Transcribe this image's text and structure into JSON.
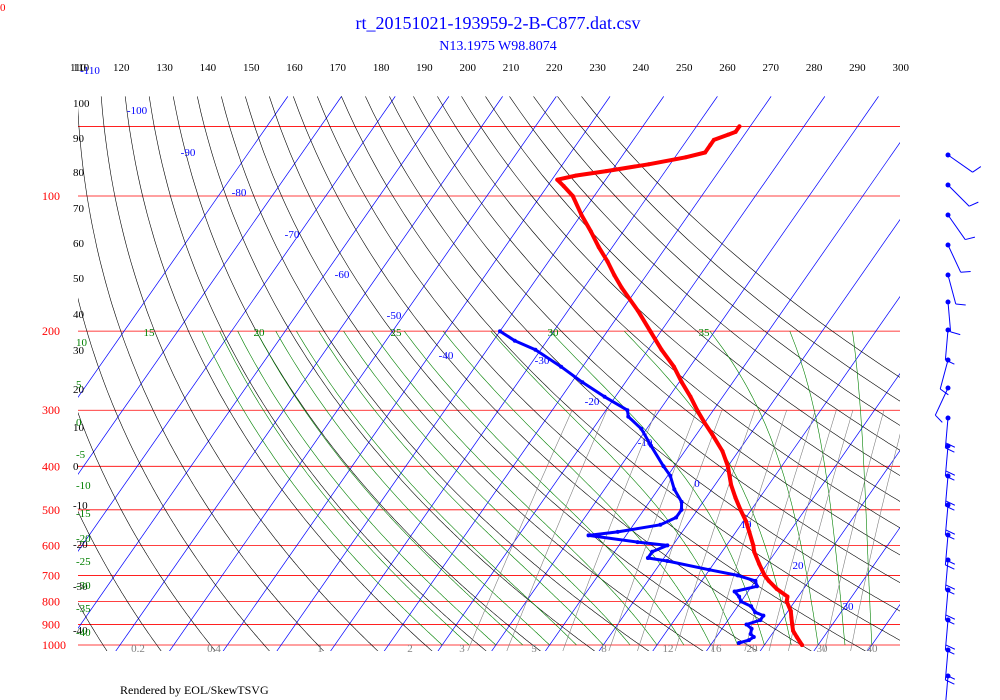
{
  "chart_data": {
    "type": "skewt",
    "title": "rt_20151021-193959-2-B-C877.dat.csv",
    "subtitle": "N13.1975 W98.8074",
    "footer": "Rendered by EOL/SkewTSVG",
    "corner_label": "0",
    "potential_temperature_ticks": [
      110,
      120,
      130,
      140,
      150,
      160,
      170,
      180,
      190,
      200,
      210,
      220,
      230,
      240,
      250,
      260,
      270,
      280,
      290,
      300
    ],
    "pressure_levels": [
      1000,
      900,
      800,
      700,
      600,
      500,
      400,
      300,
      200,
      100
    ],
    "altitude_labels": [
      "110",
      "100",
      "90",
      "80",
      "70",
      "60",
      "50",
      "40",
      "30",
      "20",
      "10",
      "0",
      "-10",
      "-20",
      "-30",
      "-40"
    ],
    "isotherm_labels": [
      "-110",
      "-100",
      "-90",
      "-80",
      "-70",
      "-60",
      "-50",
      "-40",
      "-30",
      "-20",
      "-10",
      "0",
      "10",
      "20",
      "30"
    ],
    "moist_adiabat_labels_top": [
      "15",
      "20",
      "25",
      "30",
      "35"
    ],
    "moist_adiabat_labels_left": [
      "10",
      "5",
      "0",
      "-5",
      "-10",
      "-15",
      "-20",
      "-25",
      "-30",
      "-35",
      "-40"
    ],
    "mixing_ratio_labels": [
      "0.2",
      "0.4",
      "1",
      "2",
      "3",
      "5",
      "8",
      "12",
      "16",
      "20",
      "30",
      "40"
    ],
    "temperature_profile": [
      [
        1000,
        27
      ],
      [
        960,
        25
      ],
      [
        930,
        23.5
      ],
      [
        900,
        22.5
      ],
      [
        870,
        21.5
      ],
      [
        840,
        20.5
      ],
      [
        800,
        18.5
      ],
      [
        780,
        18
      ],
      [
        750,
        15
      ],
      [
        720,
        12.5
      ],
      [
        700,
        11
      ],
      [
        660,
        8.5
      ],
      [
        620,
        6
      ],
      [
        600,
        5
      ],
      [
        560,
        2.5
      ],
      [
        530,
        0.5
      ],
      [
        500,
        -2
      ],
      [
        470,
        -4.5
      ],
      [
        440,
        -7
      ],
      [
        400,
        -10
      ],
      [
        370,
        -13
      ],
      [
        340,
        -17
      ],
      [
        320,
        -20
      ],
      [
        300,
        -23
      ],
      [
        280,
        -26
      ],
      [
        260,
        -29.5
      ],
      [
        240,
        -33
      ],
      [
        220,
        -37.5
      ],
      [
        200,
        -42
      ],
      [
        180,
        -47
      ],
      [
        160,
        -53
      ],
      [
        150,
        -56
      ],
      [
        140,
        -59
      ],
      [
        130,
        -62.5
      ],
      [
        120,
        -66
      ],
      [
        110,
        -70
      ],
      [
        100,
        -74
      ],
      [
        95,
        -77
      ],
      [
        92,
        -79
      ],
      [
        90,
        -76
      ],
      [
        88,
        -71
      ],
      [
        85,
        -64
      ],
      [
        82,
        -58
      ],
      [
        80,
        -55
      ],
      [
        77,
        -55
      ],
      [
        75,
        -55
      ],
      [
        73,
        -53
      ],
      [
        72,
        -52
      ],
      [
        70,
        -52
      ]
    ],
    "dewpoint_profile": [
      [
        990,
        15
      ],
      [
        975,
        16.5
      ],
      [
        960,
        17
      ],
      [
        945,
        16
      ],
      [
        920,
        15.5
      ],
      [
        900,
        14
      ],
      [
        880,
        16
      ],
      [
        860,
        16
      ],
      [
        845,
        14
      ],
      [
        820,
        12.5
      ],
      [
        800,
        10
      ],
      [
        780,
        9
      ],
      [
        760,
        7.5
      ],
      [
        740,
        11
      ],
      [
        720,
        10
      ],
      [
        700,
        6
      ],
      [
        680,
        0
      ],
      [
        650,
        -9
      ],
      [
        640,
        -13
      ],
      [
        620,
        -13
      ],
      [
        600,
        -11
      ],
      [
        590,
        -17
      ],
      [
        570,
        -27
      ],
      [
        560,
        -22
      ],
      [
        540,
        -15
      ],
      [
        520,
        -13
      ],
      [
        500,
        -13
      ],
      [
        480,
        -14
      ],
      [
        450,
        -17
      ],
      [
        420,
        -19.5
      ],
      [
        400,
        -22
      ],
      [
        360,
        -27
      ],
      [
        330,
        -31
      ],
      [
        310,
        -35
      ],
      [
        300,
        -36
      ],
      [
        280,
        -42
      ],
      [
        260,
        -48
      ],
      [
        240,
        -54
      ],
      [
        220,
        -61
      ],
      [
        210,
        -66
      ],
      [
        200,
        -70
      ]
    ],
    "axis_ranges": {
      "pressure_hPa": [
        1000,
        70
      ],
      "temperature_C": [
        -110,
        40
      ]
    },
    "colors": {
      "temperature": "#ff0000",
      "dewpoint": "#0000ff",
      "isobar": "#ff0000",
      "isotherm": "#0000ff",
      "dry_adiabat": "#000000",
      "moist_adiabat": "#008000",
      "mixing_ratio": "#808080",
      "title": "#0000ff"
    }
  }
}
